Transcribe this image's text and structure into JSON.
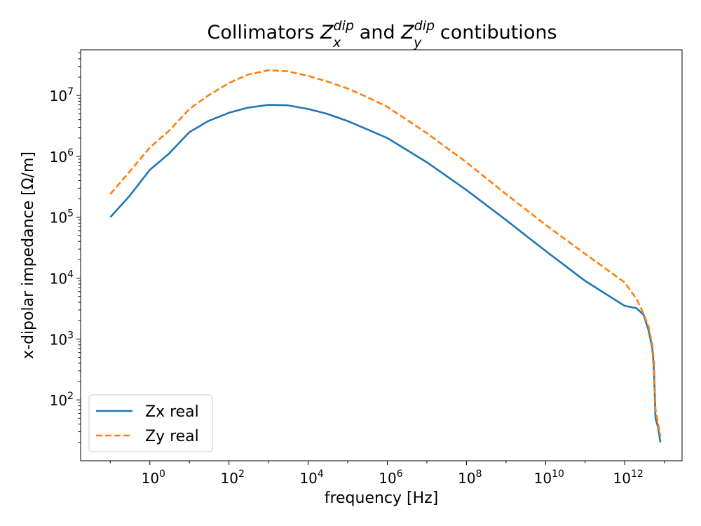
{
  "chart_data": {
    "type": "line",
    "title": {
      "prefix": "Collimators ",
      "zx_base": "Z",
      "zx_sup": "dip",
      "zx_sub": "x",
      "middle": " and ",
      "zy_base": "Z",
      "zy_sup": "dip",
      "zy_sub": "y",
      "suffix": " contibutions"
    },
    "xlabel": "frequency [Hz]",
    "ylabel": "x-dipolar impedance [Ω/m]",
    "xscale": "log",
    "yscale": "log",
    "xlim_log10": [
      -1.75,
      13.45
    ],
    "ylim_log10": [
      1.0,
      7.75
    ],
    "x_ticks": [
      {
        "base": "10",
        "exp": "0",
        "log10": 0
      },
      {
        "base": "10",
        "exp": "2",
        "log10": 2
      },
      {
        "base": "10",
        "exp": "4",
        "log10": 4
      },
      {
        "base": "10",
        "exp": "6",
        "log10": 6
      },
      {
        "base": "10",
        "exp": "8",
        "log10": 8
      },
      {
        "base": "10",
        "exp": "10",
        "log10": 10
      },
      {
        "base": "10",
        "exp": "12",
        "log10": 12
      }
    ],
    "y_ticks": [
      {
        "base": "10",
        "exp": "2",
        "log10": 2
      },
      {
        "base": "10",
        "exp": "3",
        "log10": 3
      },
      {
        "base": "10",
        "exp": "4",
        "log10": 4
      },
      {
        "base": "10",
        "exp": "5",
        "log10": 5
      },
      {
        "base": "10",
        "exp": "6",
        "log10": 6
      },
      {
        "base": "10",
        "exp": "7",
        "log10": 7
      }
    ],
    "grid": false,
    "legend_position": "lower-left",
    "series": [
      {
        "name": "Zx real",
        "color": "#1f77b4",
        "style": "solid",
        "points": [
          [
            0.1,
            100000.0
          ],
          [
            0.3,
            220000.0
          ],
          [
            1,
            600000.0
          ],
          [
            3,
            1100000.0
          ],
          [
            10,
            2500000.0
          ],
          [
            30,
            3800000.0
          ],
          [
            100,
            5200000.0
          ],
          [
            300,
            6300000.0
          ],
          [
            1000,
            7000000.0
          ],
          [
            3000,
            6900000.0
          ],
          [
            10000,
            6000000.0
          ],
          [
            30000,
            5000000.0
          ],
          [
            100000,
            3800000.0
          ],
          [
            300000,
            2800000.0
          ],
          [
            1000000.0,
            2000000.0
          ],
          [
            10000000.0,
            800000.0
          ],
          [
            100000000.0,
            280000.0
          ],
          [
            1000000000.0,
            90000.0
          ],
          [
            10000000000.0,
            28000.0
          ],
          [
            100000000000.0,
            9000.0
          ],
          [
            1000000000000.0,
            3500.0
          ],
          [
            2000000000000.0,
            3200.0
          ],
          [
            3000000000000.0,
            2500.0
          ],
          [
            4000000000000.0,
            1400.0
          ],
          [
            5000000000000.0,
            700.0
          ],
          [
            5500000000000.0,
            300.0
          ],
          [
            6000000000000.0,
            50
          ],
          [
            7000000000000.0,
            35
          ],
          [
            8000000000000.0,
            20
          ]
        ]
      },
      {
        "name": "Zy real",
        "color": "#ff7f0e",
        "style": "dashed",
        "points": [
          [
            0.1,
            240000.0
          ],
          [
            0.3,
            550000.0
          ],
          [
            1,
            1400000.0
          ],
          [
            3,
            2600000.0
          ],
          [
            10,
            6000000.0
          ],
          [
            30,
            10000000.0
          ],
          [
            100,
            16000000.0
          ],
          [
            300,
            22000000.0
          ],
          [
            1000,
            26000000.0
          ],
          [
            3000,
            25000000.0
          ],
          [
            10000,
            21000000.0
          ],
          [
            30000,
            17000000.0
          ],
          [
            100000,
            13000000.0
          ],
          [
            300000,
            9500000.0
          ],
          [
            1000000.0,
            6500000.0
          ],
          [
            10000000.0,
            2400000.0
          ],
          [
            100000000.0,
            800000.0
          ],
          [
            1000000000.0,
            240000.0
          ],
          [
            10000000000.0,
            75000.0
          ],
          [
            100000000000.0,
            25000.0
          ],
          [
            1000000000000.0,
            8500.0
          ],
          [
            2000000000000.0,
            4500.0
          ],
          [
            3000000000000.0,
            2600.0
          ],
          [
            4000000000000.0,
            1600.0
          ],
          [
            5000000000000.0,
            800.0
          ],
          [
            5500000000000.0,
            400.0
          ],
          [
            6000000000000.0,
            70
          ],
          [
            7000000000000.0,
            40
          ],
          [
            8000000000000.0,
            25
          ]
        ]
      }
    ]
  }
}
